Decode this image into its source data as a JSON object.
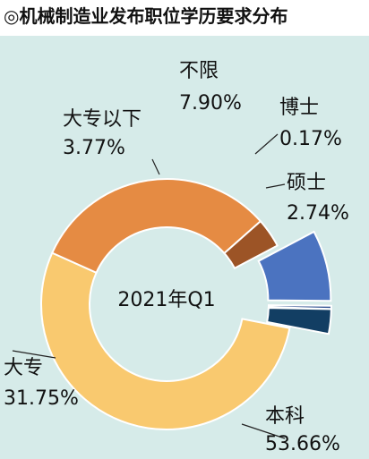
{
  "title": "◎机械制造业发布职位学历要求分布",
  "chart_data": {
    "type": "donut",
    "center_label": "2021年Q1",
    "slices": [
      {
        "name": "本科",
        "value": 53.66,
        "label": "53.66%",
        "color": "#f9c96f",
        "exploded": false
      },
      {
        "name": "大专",
        "value": 31.75,
        "label": "31.75%",
        "color": "#e58b43",
        "exploded": false
      },
      {
        "name": "大专以下",
        "value": 3.77,
        "label": "3.77%",
        "color": "#9c5426",
        "exploded": false
      },
      {
        "name": "不限",
        "value": 7.9,
        "label": "7.90%",
        "color": "#4b73c0",
        "exploded": true
      },
      {
        "name": "博士",
        "value": 0.17,
        "label": "0.17%",
        "color": "#2d4f8f",
        "exploded": true
      },
      {
        "name": "硕士",
        "value": 2.74,
        "label": "2.74%",
        "color": "#123e63",
        "exploded": true
      }
    ]
  }
}
